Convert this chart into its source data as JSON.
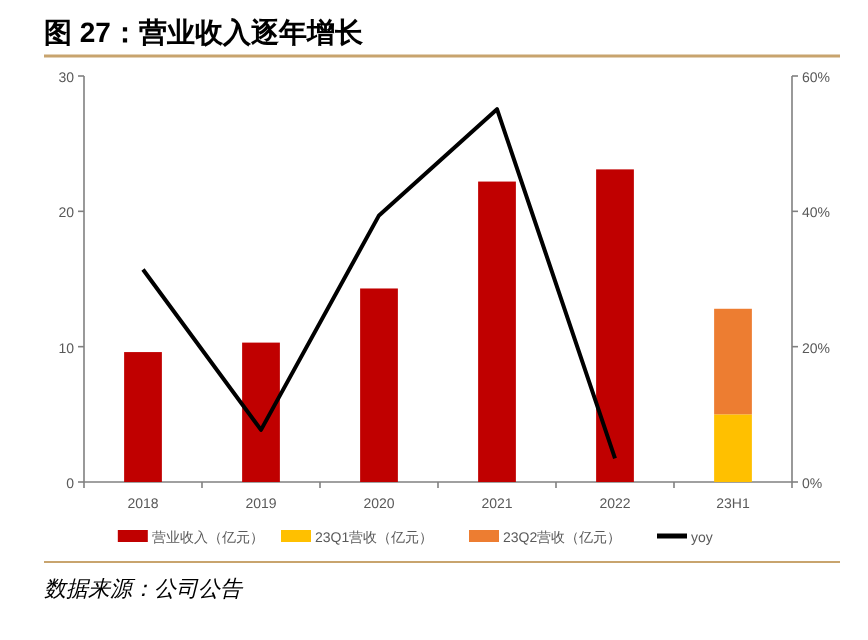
{
  "chart_data": {
    "type": "bar",
    "title": "图 27：营业收入逐年增长",
    "categories": [
      "2018",
      "2019",
      "2020",
      "2021",
      "2022",
      "23H1"
    ],
    "stacked": true,
    "series": [
      {
        "name": "营业收入（亿元）",
        "color": "#c00000",
        "values": [
          9.6,
          10.3,
          14.3,
          22.2,
          23.1,
          null
        ]
      },
      {
        "name": "23Q1营收（亿元）",
        "color": "#ffc000",
        "values": [
          null,
          null,
          null,
          null,
          null,
          5.0
        ]
      },
      {
        "name": "23Q2营收（亿元）",
        "color": "#ed7d31",
        "values": [
          null,
          null,
          null,
          null,
          null,
          7.8
        ]
      },
      {
        "name": "yoy",
        "type": "line",
        "axis": "y2",
        "color": "#000000",
        "values": [
          31.4,
          7.7,
          39.4,
          55.1,
          3.5,
          null
        ]
      }
    ],
    "ylim": [
      0,
      30
    ],
    "yticks": [
      0,
      10,
      20,
      30
    ],
    "y2lim": [
      0,
      60
    ],
    "y2ticks": [
      {
        "value": 0,
        "label": "0%"
      },
      {
        "value": 20,
        "label": "20%"
      },
      {
        "value": 40,
        "label": "40%"
      },
      {
        "value": 60,
        "label": "60%"
      }
    ],
    "legend": "bottom",
    "annotations": [
      "数据来源：公司公告"
    ]
  }
}
